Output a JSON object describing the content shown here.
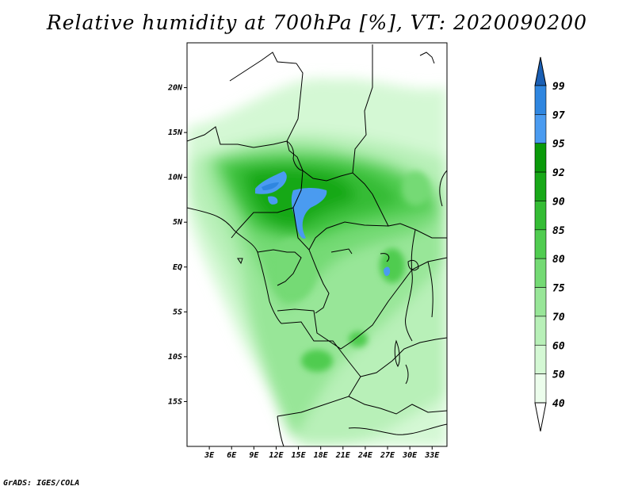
{
  "title": "Relative humidity at 700hPa [%], VT: 2020090200",
  "credit": "GrADS: IGES/COLA",
  "map": {
    "lon_range": [
      0,
      35
    ],
    "lat_range": [
      -20,
      25
    ],
    "lat_ticks": [
      {
        "value": 20,
        "label": "20N"
      },
      {
        "value": 15,
        "label": "15N"
      },
      {
        "value": 10,
        "label": "10N"
      },
      {
        "value": 5,
        "label": "5N"
      },
      {
        "value": 0,
        "label": "EQ"
      },
      {
        "value": -5,
        "label": "5S"
      },
      {
        "value": -10,
        "label": "10S"
      },
      {
        "value": -15,
        "label": "15S"
      }
    ],
    "lon_ticks": [
      {
        "value": 3,
        "label": "3E"
      },
      {
        "value": 6,
        "label": "6E"
      },
      {
        "value": 9,
        "label": "9E"
      },
      {
        "value": 12,
        "label": "12E"
      },
      {
        "value": 15,
        "label": "15E"
      },
      {
        "value": 18,
        "label": "18E"
      },
      {
        "value": 21,
        "label": "21E"
      },
      {
        "value": 24,
        "label": "24E"
      },
      {
        "value": 27,
        "label": "27E"
      },
      {
        "value": 30,
        "label": "30E"
      },
      {
        "value": 33,
        "label": "33E"
      }
    ]
  },
  "colorbar": {
    "levels": [
      {
        "label": "99",
        "color": "#1e6ec8"
      },
      {
        "label": "97",
        "color": "#2f86e0"
      },
      {
        "label": "95",
        "color": "#4a9bf0"
      },
      {
        "label": "92",
        "color": "#0a9a0a"
      },
      {
        "label": "90",
        "color": "#18a818"
      },
      {
        "label": "85",
        "color": "#34bc34"
      },
      {
        "label": "80",
        "color": "#50cc50"
      },
      {
        "label": "75",
        "color": "#74da74"
      },
      {
        "label": "70",
        "color": "#98e698"
      },
      {
        "label": "60",
        "color": "#b8f0b8"
      },
      {
        "label": "50",
        "color": "#d4f8d4"
      },
      {
        "label": "40",
        "color": "#ecfdec"
      }
    ],
    "top_arrow_color": "#1a5fb4",
    "bottom_arrow_color": "#ffffff"
  }
}
